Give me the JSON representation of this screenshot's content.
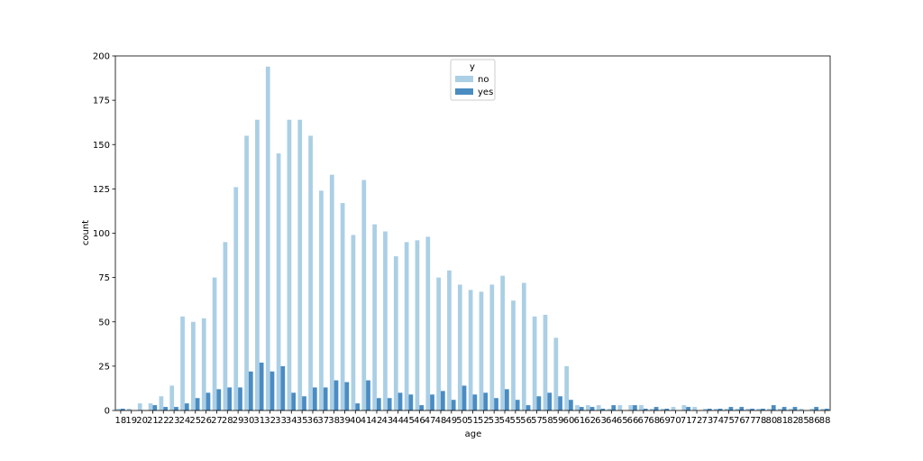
{
  "chart_data": {
    "type": "bar",
    "xlabel": "age",
    "ylabel": "count",
    "ylim": [
      0,
      200
    ],
    "yticks": [
      0,
      25,
      50,
      75,
      100,
      125,
      150,
      175,
      200
    ],
    "grid": false,
    "legend": {
      "title": "y",
      "placement": "top-center",
      "entries": [
        "no",
        "yes"
      ]
    },
    "categories": [
      "18",
      "19",
      "20",
      "21",
      "22",
      "23",
      "24",
      "25",
      "26",
      "27",
      "28",
      "29",
      "30",
      "31",
      "32",
      "33",
      "34",
      "35",
      "36",
      "37",
      "38",
      "39",
      "40",
      "41",
      "42",
      "43",
      "44",
      "45",
      "46",
      "47",
      "48",
      "49",
      "50",
      "51",
      "52",
      "53",
      "54",
      "55",
      "56",
      "57",
      "58",
      "59",
      "60",
      "61",
      "62",
      "63",
      "64",
      "65",
      "66",
      "67",
      "68",
      "69",
      "70",
      "71",
      "72",
      "73",
      "74",
      "75",
      "76",
      "77",
      "78",
      "80",
      "81",
      "82",
      "85",
      "86",
      "88"
    ],
    "series": [
      {
        "name": "no",
        "color": "#abcfe5",
        "values": [
          1,
          1,
          4,
          4,
          8,
          14,
          53,
          50,
          52,
          75,
          95,
          126,
          155,
          164,
          194,
          145,
          164,
          164,
          155,
          124,
          133,
          117,
          99,
          130,
          105,
          101,
          87,
          95,
          96,
          98,
          75,
          79,
          71,
          68,
          67,
          71,
          76,
          62,
          72,
          53,
          54,
          41,
          25,
          3,
          3,
          3,
          1,
          3,
          3,
          3,
          1,
          1,
          2,
          3,
          2,
          1,
          1,
          1,
          1,
          1,
          1,
          1,
          1,
          1,
          1,
          1,
          1
        ]
      },
      {
        "name": "yes",
        "color": "#4a8cc2",
        "values": [
          1,
          0,
          0,
          3,
          2,
          2,
          4,
          7,
          10,
          12,
          13,
          13,
          22,
          27,
          22,
          25,
          10,
          8,
          13,
          13,
          17,
          16,
          4,
          17,
          7,
          7,
          10,
          9,
          3,
          9,
          11,
          6,
          14,
          9,
          10,
          7,
          12,
          6,
          3,
          8,
          10,
          8,
          6,
          2,
          2,
          1,
          3,
          0,
          3,
          1,
          2,
          1,
          0,
          2,
          0,
          1,
          1,
          2,
          2,
          1,
          1,
          3,
          2,
          2,
          0,
          2,
          1
        ]
      }
    ]
  }
}
